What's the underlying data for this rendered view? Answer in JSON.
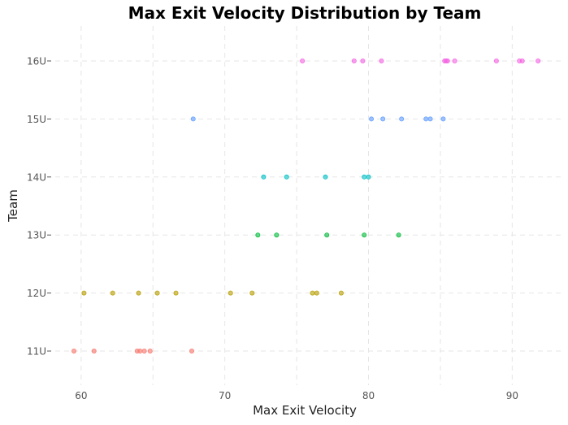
{
  "chart_data": {
    "type": "scatter",
    "title": "Max Exit Velocity Distribution by Team",
    "xlabel": "Max Exit Velocity",
    "ylabel": "Team",
    "xlim": [
      58.2,
      93.6
    ],
    "x_ticks": [
      60,
      70,
      80,
      90
    ],
    "x_tick_labels": [
      "60",
      "70",
      "80",
      "90"
    ],
    "categories": [
      "11U",
      "12U",
      "13U",
      "14U",
      "15U",
      "16U"
    ],
    "grid": true,
    "legend": "none",
    "series": [
      {
        "name": "11U",
        "color": "#F8766D",
        "x": [
          59.5,
          60.9,
          63.9,
          64.1,
          64.4,
          64.8,
          67.7
        ]
      },
      {
        "name": "12U",
        "color": "#B79F00",
        "x": [
          60.2,
          62.2,
          64.0,
          65.3,
          66.6,
          70.4,
          71.9,
          76.1,
          76.4,
          78.1
        ]
      },
      {
        "name": "13U",
        "color": "#00BA38",
        "x": [
          72.3,
          73.6,
          77.1,
          79.7,
          82.1
        ]
      },
      {
        "name": "14U",
        "color": "#00BFC4",
        "x": [
          72.7,
          74.3,
          77.0,
          79.7,
          80.0
        ]
      },
      {
        "name": "15U",
        "color": "#619CFF",
        "x": [
          67.8,
          80.2,
          81.0,
          82.3,
          84.0,
          84.3,
          85.2
        ]
      },
      {
        "name": "16U",
        "color": "#F564E3",
        "x": [
          75.4,
          79.0,
          79.6,
          80.9,
          85.3,
          85.4,
          85.5,
          86.0,
          88.9,
          90.5,
          90.7,
          91.8
        ]
      }
    ]
  }
}
